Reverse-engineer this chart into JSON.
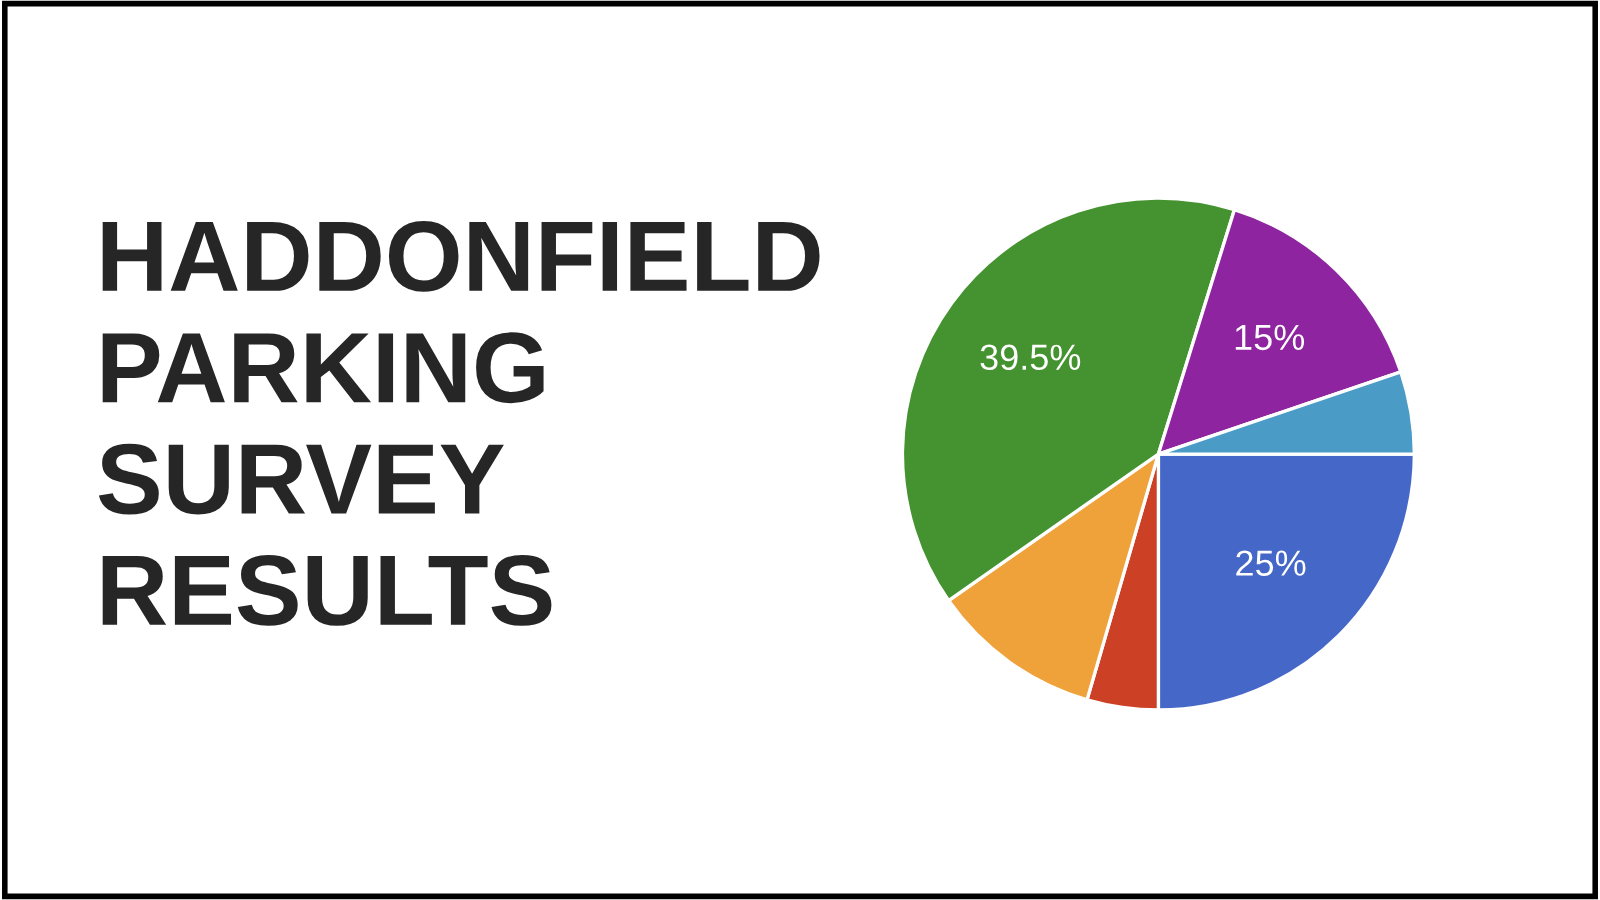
{
  "chart_data": {
    "type": "pie",
    "title": "HADDONFIELD\nPARKING\nSURVEY\nRESULTS",
    "categories": [
      null,
      null,
      null,
      null,
      null,
      null
    ],
    "values": [
      25,
      4.5,
      10.8,
      39.5,
      15,
      5.2
    ],
    "value_labels": [
      "25%",
      null,
      null,
      "39.5%",
      "15%",
      null
    ],
    "colors": [
      "#4567c8",
      "#cc4125",
      "#f0a23a",
      "#459330",
      "#8e24a0",
      "#4a9bc6"
    ],
    "legend": false
  }
}
